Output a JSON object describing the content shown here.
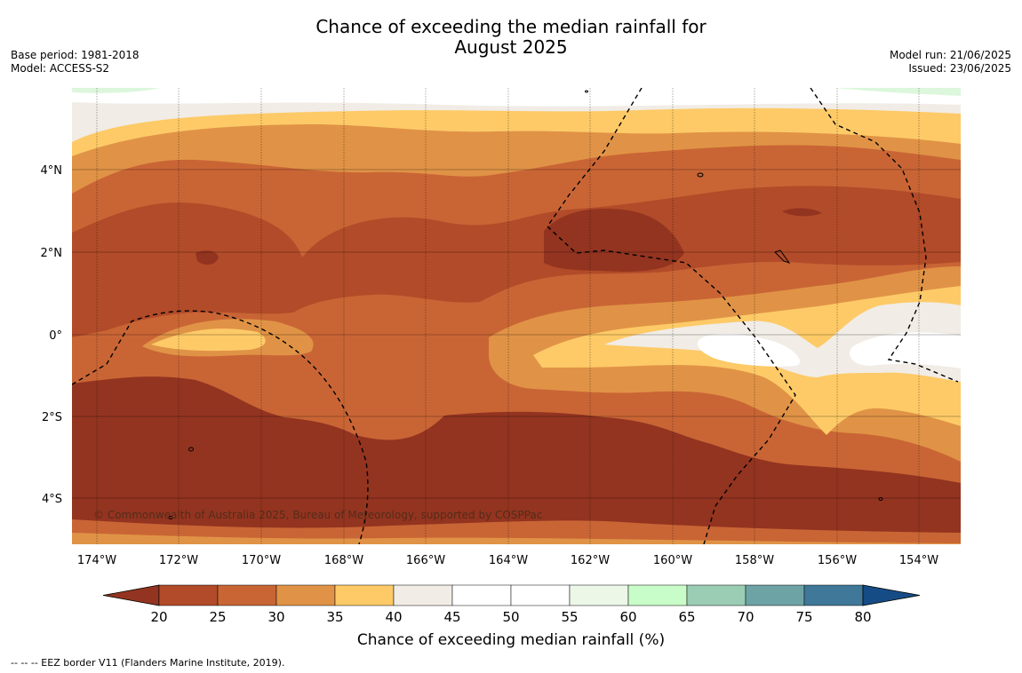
{
  "title_line1": "Chance of exceeding the median rainfall for",
  "title_line2": "August 2025",
  "base_period": "Base period: 1981-2018",
  "model": "Model: ACCESS-S2",
  "model_run": "Model run: 21/06/2025",
  "issued": "Issued: 23/06/2025",
  "lat_labels": [
    "4°N",
    "2°N",
    "0°",
    "2°S",
    "4°S"
  ],
  "lon_labels": [
    "174°W",
    "172°W",
    "170°W",
    "168°W",
    "166°W",
    "164°W",
    "162°W",
    "160°W",
    "158°W",
    "156°W",
    "154°W"
  ],
  "copyright": "© Commonwealth of Australia 2025, Bureau of Meteorology, supported by COSPPac",
  "colorbar": {
    "title": "Chance of exceeding median rainfall (%)",
    "ticks": [
      "20",
      "25",
      "30",
      "35",
      "40",
      "45",
      "50",
      "55",
      "60",
      "65",
      "70",
      "75",
      "80"
    ],
    "colors": [
      "#933420",
      "#b24b29",
      "#c96535",
      "#e09346",
      "#fdca67",
      "#f1ece6",
      "#ffffff",
      "#ffffff",
      "#edf7e8",
      "#c8fcc8",
      "#9bcdb5",
      "#6ea3a5",
      "#3f7898",
      "#164c86"
    ]
  },
  "legend_note": "--  --  -- EEZ border V11 (Flanders Marine Institute, 2019)."
}
